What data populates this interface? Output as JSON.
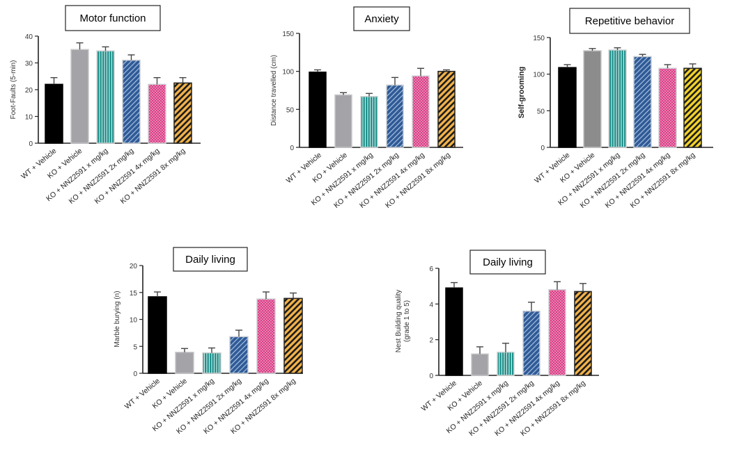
{
  "chart_data": [
    {
      "type": "bar",
      "title": "Motor function",
      "ylabel": "Foot-Faults (5-min)",
      "ylim": [
        0,
        40
      ],
      "yticks": [
        0,
        10,
        20,
        30,
        40
      ],
      "categories": [
        "WT + Vehicle",
        "KO + Vehicle",
        "KO + NNZ2591 x mg/kg",
        "KO + NNZ2591 2x mg/kg",
        "KO + NNZ2591 4x mg/kg",
        "KO + NNZ2591 8x mg/kg"
      ],
      "values": [
        22,
        35,
        34.5,
        31,
        22,
        22.5
      ],
      "errors": [
        2.5,
        2.5,
        1.5,
        2,
        2.5,
        2
      ]
    },
    {
      "type": "bar",
      "title": "Anxiety",
      "ylabel": "Distance travelled (cm)",
      "ylim": [
        0,
        150
      ],
      "yticks": [
        0,
        50,
        100,
        150
      ],
      "categories": [
        "WT + Vehicle",
        "KO + Vehicle",
        "KO + NNZ2591 x mg/kg",
        "KO + NNZ2591 2x mg/kg",
        "KO + NNZ2591 4x mg/kg",
        "KO + NNZ2591 8x mg/kg"
      ],
      "values": [
        99,
        69,
        67,
        82,
        94,
        100
      ],
      "errors": [
        3,
        3,
        4,
        10,
        10,
        2
      ]
    },
    {
      "type": "bar",
      "title": "Repetitive behavior",
      "ylabel": "Self-grooming",
      "ylim": [
        0,
        150
      ],
      "yticks": [
        0,
        50,
        100,
        150
      ],
      "categories": [
        "WT + Vehicle",
        "KO + Vehicle",
        "KO + NNZ2591 x mg/kg",
        "KO + NNZ2591 2x mg/kg",
        "KO + NNZ2591 4x mg/kg",
        "KO + NNZ2591 8x mg/kg"
      ],
      "values": [
        109,
        132,
        133,
        124,
        108,
        108
      ],
      "errors": [
        4,
        3,
        3,
        3,
        5,
        6
      ]
    },
    {
      "type": "bar",
      "title": "Daily living",
      "ylabel": "Marble burying (n)",
      "ylim": [
        0,
        20
      ],
      "yticks": [
        0,
        5,
        10,
        15,
        20
      ],
      "categories": [
        "WT + Vehicle",
        "KO + Vehicle",
        "KO + NNZ2591 x mg/kg",
        "KO + NNZ2591 2x mg/kg",
        "KO + NNZ2591 4x mg/kg",
        "KO + NNZ2591 8x mg/kg"
      ],
      "values": [
        14.2,
        3.9,
        3.8,
        6.8,
        13.8,
        13.9
      ],
      "errors": [
        0.9,
        0.7,
        0.9,
        1.2,
        1.3,
        1.0
      ]
    },
    {
      "type": "bar",
      "title": "Daily living",
      "ylabel": "Nest Building quality (grade 1 to 5)",
      "ylabel_lines": [
        "Nest Building quality",
        "(grade 1 to 5)"
      ],
      "ylim": [
        0,
        6
      ],
      "yticks": [
        0,
        2,
        4,
        6
      ],
      "categories": [
        "WT + Vehicle",
        "KO + Vehicle",
        "KO + NNZ2591 x mg/kg",
        "KO + NNZ2591 2x mg/kg",
        "KO + NNZ2591 4x mg/kg",
        "KO + NNZ2591 8x mg/kg"
      ],
      "values": [
        4.9,
        1.2,
        1.3,
        3.6,
        4.8,
        4.7
      ],
      "errors": [
        0.3,
        0.4,
        0.5,
        0.5,
        0.45,
        0.45
      ]
    }
  ],
  "styles": {
    "bar_fills": [
      "#000000",
      "#a3a3a8",
      "#1e8f8a",
      "#2f5a96",
      "#d93f86",
      "#f2b24a"
    ],
    "bar_fills_panel3": [
      "#000000",
      "#8c8c8c",
      "#1e8f8a",
      "#2f5a96",
      "#e05b9c",
      "#f2d22a"
    ],
    "patterns": [
      "solid",
      "solid",
      "vertical-stripes",
      "diagonal-hatch",
      "dots",
      "diagonal-stripes"
    ]
  }
}
